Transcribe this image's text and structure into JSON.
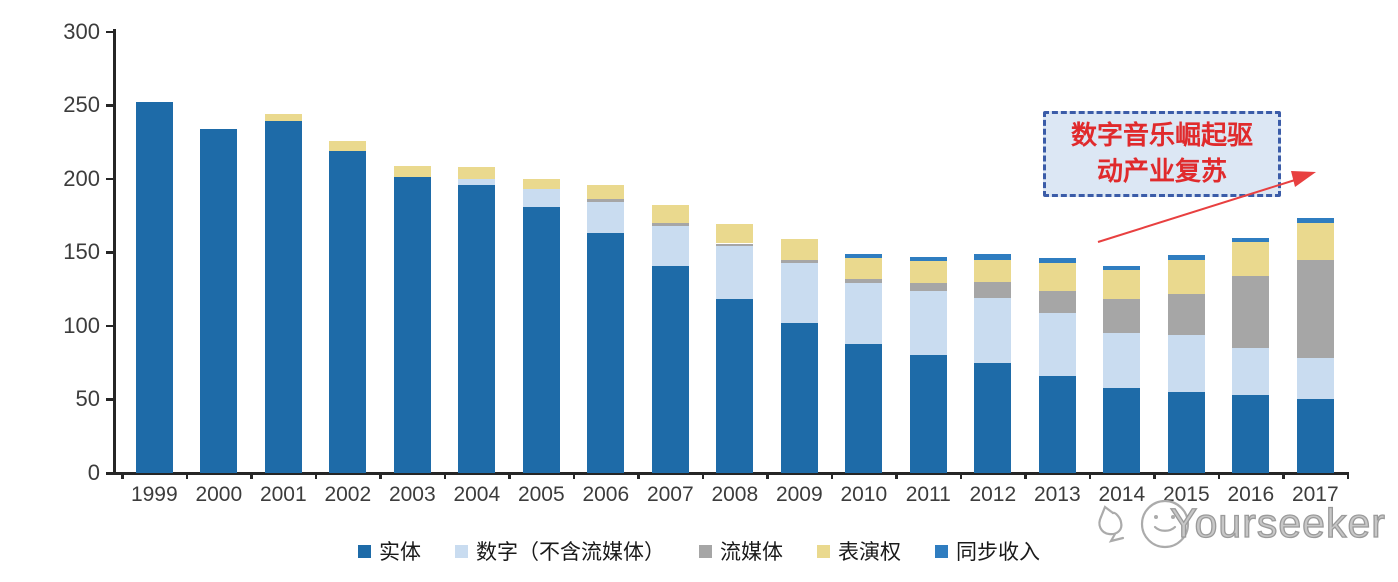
{
  "watermark": {
    "brand": "Yourseeker"
  },
  "annotation": {
    "line1": "数字音乐崛起驱",
    "line2": "动产业复苏",
    "text_color": "#e02a2c",
    "box_bg": "#dce7f4",
    "box_border": "#3b5ca8",
    "arrow_color": "#e84040"
  },
  "chart_data": {
    "type": "bar",
    "stacked": true,
    "title": "",
    "xlabel": "",
    "ylabel": "",
    "ylim": [
      0,
      300
    ],
    "yticks": [
      0,
      50,
      100,
      150,
      200,
      250,
      300
    ],
    "grid": false,
    "legend_position": "bottom",
    "categories": [
      "1999",
      "2000",
      "2001",
      "2002",
      "2003",
      "2004",
      "2005",
      "2006",
      "2007",
      "2008",
      "2009",
      "2010",
      "2011",
      "2012",
      "2013",
      "2014",
      "2015",
      "2016",
      "2017"
    ],
    "series": [
      {
        "name": "实体",
        "color": "#1e6ba8",
        "values": [
          252,
          234,
          239,
          219,
          201,
          196,
          181,
          163,
          141,
          118,
          102,
          88,
          80,
          75,
          66,
          58,
          55,
          53,
          50
        ]
      },
      {
        "name": "数字（不含流媒体）",
        "color": "#c9dcf0",
        "values": [
          0,
          0,
          0,
          0,
          0,
          4,
          12,
          21,
          27,
          36,
          41,
          41,
          44,
          44,
          43,
          37,
          39,
          32,
          28
        ]
      },
      {
        "name": "流媒体",
        "color": "#a6a6a6",
        "values": [
          0,
          0,
          0,
          0,
          0,
          0,
          0,
          2,
          2,
          2,
          2,
          3,
          5,
          11,
          15,
          23,
          28,
          49,
          67
        ]
      },
      {
        "name": "表演权",
        "color": "#ead98e",
        "values": [
          0,
          0,
          5,
          7,
          8,
          8,
          7,
          10,
          12,
          13,
          14,
          14,
          15,
          15,
          19,
          20,
          23,
          23,
          25
        ]
      },
      {
        "name": "同步收入",
        "color": "#2f7dc0",
        "values": [
          0,
          0,
          0,
          0,
          0,
          0,
          0,
          0,
          0,
          0,
          0,
          3,
          3,
          4,
          3,
          3,
          3,
          3,
          3
        ]
      }
    ],
    "totals": [
      252,
      234,
      244,
      226,
      209,
      208,
      200,
      196,
      182,
      169,
      159,
      149,
      147,
      149,
      146,
      141,
      148,
      160,
      173
    ]
  }
}
